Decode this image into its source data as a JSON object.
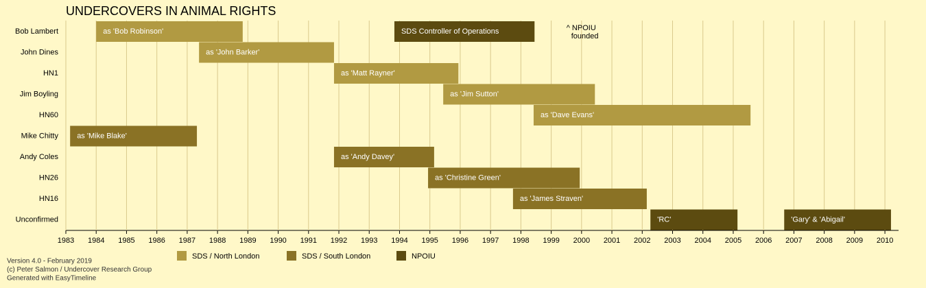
{
  "chart_data": {
    "type": "timeline",
    "title": "UNDERCOVERS IN ANIMAL RIGHTS",
    "categories": [
      "Bob Lambert",
      "John Dines",
      "HN1",
      "Jim Boyling",
      "HN60",
      "Mike Chitty",
      "Andy Coles",
      "HN26",
      "HN16",
      "Unconfirmed"
    ],
    "series": [
      {
        "name": "SDS / North London",
        "color": "#b19a42"
      },
      {
        "name": "SDS / South London",
        "color": "#8a7225"
      },
      {
        "name": "NPOIU",
        "color": "#5c4b10"
      }
    ],
    "bars": [
      {
        "category": 0,
        "start": 1984.0,
        "end": 1988.83,
        "label": "as 'Bob Robinson'",
        "series": 0
      },
      {
        "category": 0,
        "start": 1993.83,
        "end": 1998.45,
        "label": "SDS Controller of Operations",
        "series": 2
      },
      {
        "category": 1,
        "start": 1987.39,
        "end": 1991.84,
        "label": "as 'John Barker'",
        "series": 0
      },
      {
        "category": 2,
        "start": 1991.84,
        "end": 1995.94,
        "label": "as 'Matt Rayner'",
        "series": 0
      },
      {
        "category": 3,
        "start": 1995.44,
        "end": 2000.44,
        "label": "as 'Jim Sutton'",
        "series": 0
      },
      {
        "category": 4,
        "start": 1998.42,
        "end": 2005.57,
        "label": "as 'Dave Evans'",
        "series": 0
      },
      {
        "category": 5,
        "start": 1983.14,
        "end": 1987.32,
        "label": "as 'Mike Blake'",
        "series": 1
      },
      {
        "category": 6,
        "start": 1991.84,
        "end": 1995.14,
        "label": "as 'Andy Davey'",
        "series": 1
      },
      {
        "category": 7,
        "start": 1994.94,
        "end": 1999.94,
        "label": "as 'Christine Green'",
        "series": 1
      },
      {
        "category": 8,
        "start": 1997.74,
        "end": 2002.15,
        "label": "as 'James Straven'",
        "series": 1
      },
      {
        "category": 9,
        "start": 2002.27,
        "end": 2005.14,
        "label": "'RC'",
        "series": 2
      },
      {
        "category": 9,
        "start": 2006.68,
        "end": 2010.2,
        "label": "'Gary' & 'Abigail'",
        "series": 2
      }
    ],
    "annotation": {
      "text": [
        "^ NPOIU",
        "founded"
      ],
      "x": 1999.5
    },
    "xlim": [
      1983,
      2010.45
    ],
    "xticks": [
      1983,
      1984,
      1985,
      1986,
      1987,
      1988,
      1989,
      1990,
      1991,
      1992,
      1993,
      1994,
      1995,
      1996,
      1997,
      1998,
      1999,
      2000,
      2001,
      2002,
      2003,
      2004,
      2005,
      2006,
      2007,
      2008,
      2009,
      2010
    ],
    "grid": true,
    "notes": [
      "Version 4.0 - February 2019",
      "(c) Peter Salmon / Undercover Research Group",
      "Generated with EasyTimeline"
    ]
  }
}
